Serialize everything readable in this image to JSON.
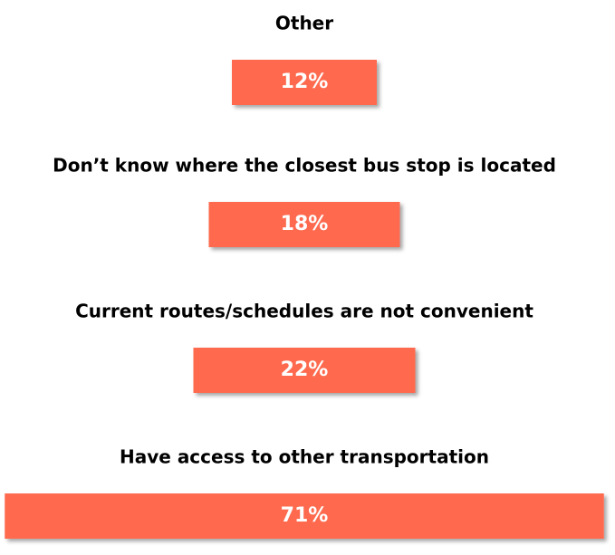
{
  "chart_data": {
    "type": "bar",
    "orientation": "horizontal",
    "categories": [
      "Other",
      "Don’t know where the closest bus stop is located",
      "Current routes/schedules are not convenient",
      "Have access to other transportation"
    ],
    "values": [
      12,
      18,
      22,
      71
    ],
    "value_labels": [
      "12%",
      "18%",
      "22%",
      "71%"
    ],
    "color": "#ff6a4f"
  }
}
